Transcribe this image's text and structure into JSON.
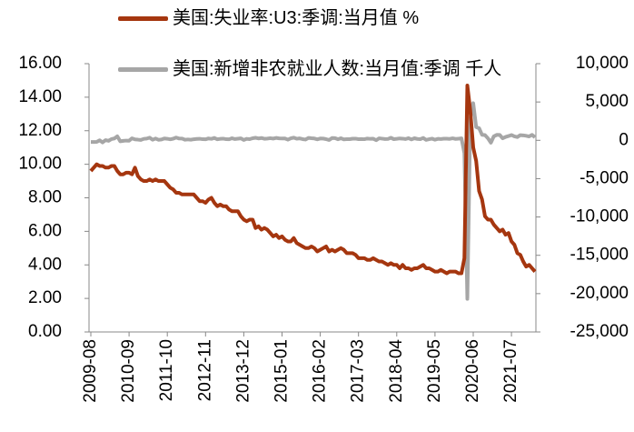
{
  "chart_data": {
    "type": "line",
    "categories": [
      "2009-08",
      null,
      null,
      null,
      null,
      null,
      null,
      null,
      null,
      null,
      null,
      null,
      null,
      "2010-09",
      null,
      null,
      null,
      null,
      null,
      null,
      null,
      null,
      null,
      null,
      null,
      null,
      "2011-10",
      null,
      null,
      null,
      null,
      null,
      null,
      null,
      null,
      null,
      null,
      null,
      null,
      "2012-11",
      null,
      null,
      null,
      null,
      null,
      null,
      null,
      null,
      null,
      null,
      null,
      null,
      "2013-12",
      null,
      null,
      null,
      null,
      null,
      null,
      null,
      null,
      null,
      null,
      null,
      null,
      "2015-01",
      null,
      null,
      null,
      null,
      null,
      null,
      null,
      null,
      null,
      null,
      null,
      null,
      "2016-02",
      null,
      null,
      null,
      null,
      null,
      null,
      null,
      null,
      null,
      null,
      null,
      null,
      "2017-03",
      null,
      null,
      null,
      null,
      null,
      null,
      null,
      null,
      null,
      null,
      null,
      null,
      "2018-04",
      null,
      null,
      null,
      null,
      null,
      null,
      null,
      null,
      null,
      null,
      null,
      null,
      "2019-05",
      null,
      null,
      null,
      null,
      null,
      null,
      null,
      null,
      null,
      null,
      null,
      null,
      "2020-06",
      null,
      null,
      null,
      null,
      null,
      null,
      null,
      null,
      null,
      null,
      null,
      null,
      "2021-07",
      null,
      null,
      null,
      null,
      null,
      null,
      null,
      null
    ],
    "series": [
      {
        "name": "美国:失业率:U3:季调:当月值 %",
        "color": "#a5360f",
        "axis": "y",
        "values": [
          9.6,
          9.8,
          10.0,
          9.9,
          9.9,
          9.8,
          9.8,
          9.9,
          9.9,
          9.6,
          9.4,
          9.4,
          9.5,
          9.5,
          9.4,
          9.8,
          9.3,
          9.1,
          9.0,
          9.0,
          9.1,
          9.0,
          9.1,
          9.0,
          9.0,
          9.0,
          8.8,
          8.6,
          8.5,
          8.3,
          8.3,
          8.2,
          8.2,
          8.2,
          8.2,
          8.2,
          8.0,
          7.8,
          7.8,
          7.7,
          7.9,
          8.0,
          7.7,
          7.5,
          7.6,
          7.5,
          7.5,
          7.3,
          7.2,
          7.2,
          7.2,
          6.9,
          6.7,
          6.6,
          6.7,
          6.7,
          6.2,
          6.3,
          6.1,
          6.2,
          6.1,
          5.9,
          5.7,
          5.8,
          5.6,
          5.7,
          5.5,
          5.4,
          5.4,
          5.6,
          5.3,
          5.2,
          5.1,
          5.0,
          5.0,
          5.1,
          5.0,
          4.8,
          4.9,
          5.0,
          5.1,
          4.8,
          4.9,
          4.8,
          4.9,
          5.0,
          4.9,
          4.7,
          4.7,
          4.7,
          4.6,
          4.4,
          4.4,
          4.4,
          4.3,
          4.3,
          4.4,
          4.3,
          4.2,
          4.2,
          4.1,
          4.0,
          4.1,
          4.0,
          4.0,
          3.8,
          4.0,
          3.8,
          3.8,
          3.7,
          3.8,
          3.8,
          3.9,
          4.0,
          3.8,
          3.8,
          3.7,
          3.6,
          3.6,
          3.7,
          3.6,
          3.5,
          3.6,
          3.6,
          3.6,
          3.5,
          3.5,
          4.4,
          14.7,
          13.2,
          11.0,
          10.2,
          8.4,
          7.9,
          6.9,
          6.7,
          6.7,
          6.4,
          6.2,
          6.0,
          6.1,
          5.8,
          5.9,
          5.4,
          5.2,
          4.7,
          4.6,
          4.2,
          3.9,
          4.0,
          3.8,
          3.6
        ]
      },
      {
        "name": "美国:新增非农就业人数:当月值:季调 千人",
        "color": "#a6a6a6",
        "axis": "y2",
        "values": [
          -213,
          -220,
          -204,
          -2,
          -275,
          23,
          -68,
          164,
          243,
          522,
          -133,
          -70,
          -34,
          -52,
          262,
          119,
          87,
          43,
          189,
          225,
          346,
          73,
          235,
          69,
          107,
          246,
          202,
          134,
          209,
          358,
          237,
          233,
          78,
          115,
          76,
          143,
          177,
          203,
          146,
          132,
          244,
          190,
          311,
          135,
          192,
          218,
          146,
          140,
          268,
          165,
          212,
          258,
          47,
          190,
          151,
          272,
          329,
          246,
          304,
          202,
          230,
          280,
          227,
          312,
          255,
          234,
          238,
          86,
          262,
          344,
          206,
          254,
          157,
          100,
          321,
          272,
          239,
          126,
          237,
          225,
          153,
          43,
          297,
          291,
          135,
          265,
          124,
          153,
          156,
          216,
          219,
          149,
          174,
          145,
          232,
          190,
          208,
          18,
          263,
          219,
          171,
          176,
          331,
          152,
          193,
          248,
          218,
          166,
          282,
          113,
          272,
          183,
          153,
          310,
          56,
          141,
          219,
          83,
          191,
          164,
          206,
          208,
          186,
          261,
          184,
          214,
          251,
          -1683,
          -20679,
          2833,
          4846,
          1726,
          1583,
          716,
          680,
          264,
          -306,
          520,
          710,
          704,
          263,
          447,
          557,
          689,
          517,
          424,
          677,
          647,
          588,
          504,
          714,
          398
        ]
      }
    ],
    "ylim": [
      0,
      16
    ],
    "yticks": [
      {
        "value": 0,
        "label": "0.00"
      },
      {
        "value": 2,
        "label": "2.00"
      },
      {
        "value": 4,
        "label": "4.00"
      },
      {
        "value": 6,
        "label": "6.00"
      },
      {
        "value": 8,
        "label": "8.00"
      },
      {
        "value": 10,
        "label": "10.00"
      },
      {
        "value": 12,
        "label": "12.00"
      },
      {
        "value": 14,
        "label": "14.00"
      },
      {
        "value": 16,
        "label": "16.00"
      }
    ],
    "y2lim": [
      -25000,
      10000
    ],
    "y2ticks": [
      {
        "value": -25000,
        "label": "-25,000"
      },
      {
        "value": -20000,
        "label": "-20,000"
      },
      {
        "value": -15000,
        "label": "-15,000"
      },
      {
        "value": -10000,
        "label": "-10,000"
      },
      {
        "value": -5000,
        "label": "-5,000"
      },
      0,
      {
        "value": 5000,
        "label": "5,000"
      },
      {
        "value": 10000,
        "label": "10,000"
      }
    ],
    "grid": false
  }
}
